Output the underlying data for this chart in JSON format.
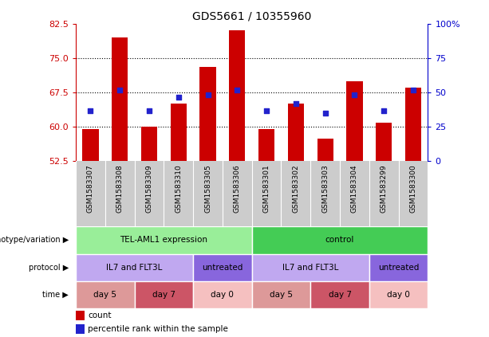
{
  "title": "GDS5661 / 10355960",
  "samples": [
    "GSM1583307",
    "GSM1583308",
    "GSM1583309",
    "GSM1583310",
    "GSM1583305",
    "GSM1583306",
    "GSM1583301",
    "GSM1583302",
    "GSM1583303",
    "GSM1583304",
    "GSM1583299",
    "GSM1583300"
  ],
  "bar_values": [
    59.5,
    79.5,
    60.0,
    65.0,
    73.0,
    81.0,
    59.5,
    65.0,
    57.5,
    70.0,
    61.0,
    68.5
  ],
  "dot_values": [
    63.5,
    68.0,
    63.5,
    66.5,
    67.0,
    68.0,
    63.5,
    65.0,
    63.0,
    67.0,
    63.5,
    68.0
  ],
  "ymin": 52.5,
  "ymax": 82.5,
  "yticks_left": [
    52.5,
    60.0,
    67.5,
    75.0,
    82.5
  ],
  "yticks_right": [
    0,
    25,
    50,
    75,
    100
  ],
  "bar_color": "#cc0000",
  "dot_color": "#2222cc",
  "xtick_bg": "#cccccc",
  "plot_bg": "#ffffff",
  "grid_color": "#000000",
  "left_axis_color": "#cc0000",
  "right_axis_color": "#0000cc",
  "genotype_row": {
    "label": "genotype/variation",
    "groups": [
      {
        "text": "TEL-AML1 expression",
        "start": 0,
        "end": 6,
        "color": "#99ee99"
      },
      {
        "text": "control",
        "start": 6,
        "end": 12,
        "color": "#44cc55"
      }
    ]
  },
  "protocol_row": {
    "label": "protocol",
    "groups": [
      {
        "text": "IL7 and FLT3L",
        "start": 0,
        "end": 4,
        "color": "#c0a8f0"
      },
      {
        "text": "untreated",
        "start": 4,
        "end": 6,
        "color": "#8866dd"
      },
      {
        "text": "IL7 and FLT3L",
        "start": 6,
        "end": 10,
        "color": "#c0a8f0"
      },
      {
        "text": "untreated",
        "start": 10,
        "end": 12,
        "color": "#8866dd"
      }
    ]
  },
  "time_row": {
    "label": "time",
    "groups": [
      {
        "text": "day 5",
        "start": 0,
        "end": 2,
        "color": "#dd9999"
      },
      {
        "text": "day 7",
        "start": 2,
        "end": 4,
        "color": "#cc5566"
      },
      {
        "text": "day 0",
        "start": 4,
        "end": 6,
        "color": "#f5c0c0"
      },
      {
        "text": "day 5",
        "start": 6,
        "end": 8,
        "color": "#dd9999"
      },
      {
        "text": "day 7",
        "start": 8,
        "end": 10,
        "color": "#cc5566"
      },
      {
        "text": "day 0",
        "start": 10,
        "end": 12,
        "color": "#f5c0c0"
      }
    ]
  },
  "legend_count_color": "#cc0000",
  "legend_dot_color": "#2222cc"
}
